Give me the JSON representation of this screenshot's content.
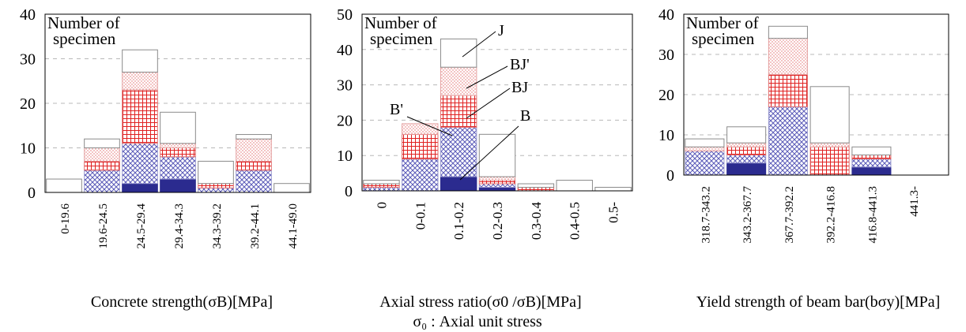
{
  "colors": {
    "B": "#2b2b8f",
    "B_prime": "#5a5ab8",
    "BJ": "#e02020",
    "BJ_prime": "#e36a6a",
    "J": "#ffffff",
    "axis": "#000000",
    "grid": "#b8b8b8"
  },
  "subtitle": "σ₀ : Axial unit stress",
  "chart_data": [
    {
      "type": "bar",
      "stacked": true,
      "xlabel": "Concrete strength(σB)[MPa]",
      "ylabel_inside": [
        "Number of",
        "specimen"
      ],
      "categories": [
        "0-19.6",
        "19.6-24.5",
        "24.5-29.4",
        "29.4-34.3",
        "34.3-39.2",
        "39.2-44.1",
        "44.1-49.0"
      ],
      "ylim": [
        0,
        40
      ],
      "yticks": [
        0,
        10,
        20,
        30,
        40
      ],
      "grid": true,
      "series": [
        {
          "key": "B",
          "values": [
            0,
            0,
            2,
            3,
            0,
            0,
            0
          ]
        },
        {
          "key": "B_prime",
          "values": [
            0,
            5,
            9,
            5,
            1,
            5,
            0
          ]
        },
        {
          "key": "BJ",
          "values": [
            0,
            2,
            12,
            2,
            1,
            2,
            0
          ]
        },
        {
          "key": "BJ_prime",
          "values": [
            0,
            3,
            4,
            1,
            0,
            5,
            0
          ]
        },
        {
          "key": "J",
          "values": [
            3,
            2,
            5,
            7,
            5,
            1,
            2
          ]
        }
      ]
    },
    {
      "type": "bar",
      "stacked": true,
      "xlabel": "Axial stress ratio(σ0 /σB)[MPa]",
      "ylabel_inside": [
        "Number of",
        "specimen"
      ],
      "categories": [
        "0",
        "0-0.1",
        "0.1-0.2",
        "0.2-0.3",
        "0.3-0.4",
        "0.4-0.5",
        "0.5-"
      ],
      "ylim": [
        0,
        50
      ],
      "yticks": [
        0,
        10,
        20,
        30,
        40,
        50
      ],
      "grid": true,
      "series": [
        {
          "key": "B",
          "values": [
            0,
            0,
            4,
            1,
            0,
            0,
            0
          ]
        },
        {
          "key": "B_prime",
          "values": [
            1,
            9,
            14,
            1,
            0,
            0,
            0
          ]
        },
        {
          "key": "BJ",
          "values": [
            1,
            7,
            9,
            1,
            1,
            0,
            0
          ]
        },
        {
          "key": "BJ_prime",
          "values": [
            0,
            3,
            8,
            1,
            0,
            0,
            0
          ]
        },
        {
          "key": "J",
          "values": [
            1,
            0,
            8,
            12,
            1,
            3,
            1
          ]
        }
      ],
      "annotations": [
        "J",
        "BJ'",
        "BJ",
        "B'",
        "B"
      ]
    },
    {
      "type": "bar",
      "stacked": true,
      "xlabel": "Yield strength of beam bar(bσy)[MPa]",
      "ylabel_inside": [
        "Number of",
        "specimen"
      ],
      "categories": [
        "318.7-343.2",
        "343.2-367.7",
        "367.7-392.2",
        "392.2-416.8",
        "416.8-441.3",
        "441.3-"
      ],
      "ylim": [
        0,
        40
      ],
      "yticks": [
        0,
        10,
        20,
        30,
        40
      ],
      "grid": true,
      "series": [
        {
          "key": "B",
          "values": [
            0,
            3,
            0,
            0,
            2,
            0
          ]
        },
        {
          "key": "B_prime",
          "values": [
            6,
            2,
            17,
            0,
            2,
            0
          ]
        },
        {
          "key": "BJ",
          "values": [
            0,
            2,
            8,
            7,
            1,
            0
          ]
        },
        {
          "key": "BJ_prime",
          "values": [
            1,
            1,
            9,
            1,
            0,
            0
          ]
        },
        {
          "key": "J",
          "values": [
            2,
            4,
            3,
            14,
            2,
            0
          ]
        }
      ]
    }
  ]
}
